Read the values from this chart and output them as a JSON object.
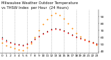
{
  "title_line1": "Milwaukee Weather Outdoor Temperature",
  "title_line2": "vs THSW Index  per Hour  (24 Hours)",
  "hours": [
    0,
    1,
    2,
    3,
    4,
    5,
    6,
    7,
    8,
    9,
    10,
    11,
    12,
    13,
    14,
    15,
    16,
    17,
    18,
    19,
    20,
    21,
    22,
    23
  ],
  "temp": [
    58,
    54,
    52,
    50,
    49,
    48,
    50,
    53,
    57,
    61,
    65,
    68,
    71,
    72,
    71,
    69,
    66,
    63,
    60,
    58,
    56,
    54,
    52,
    50
  ],
  "thsw": [
    52,
    48,
    46,
    44,
    43,
    42,
    45,
    51,
    60,
    70,
    79,
    86,
    92,
    95,
    92,
    87,
    80,
    73,
    66,
    61,
    57,
    54,
    52,
    49
  ],
  "black_temp": [
    60,
    56,
    53,
    51,
    50,
    49,
    51,
    54,
    58,
    62,
    66,
    69,
    72,
    73,
    72,
    70,
    67,
    64,
    61,
    59,
    57,
    55,
    53,
    51
  ],
  "temp_color": "#ff0000",
  "thsw_color": "#ff8800",
  "black_color": "#000000",
  "bg_color": "#ffffff",
  "grid_color": "#999999",
  "ylim": [
    38,
    100
  ],
  "xlim": [
    -0.5,
    23.5
  ],
  "vgrid_positions": [
    0,
    3,
    6,
    9,
    12,
    15,
    18,
    21
  ],
  "ytick_vals": [
    40,
    50,
    60,
    70,
    80,
    90
  ],
  "title_fontsize": 3.8,
  "tick_fontsize": 3.2,
  "dot_size_thsw": 2.0,
  "dot_size_temp": 1.5,
  "dot_size_black": 1.0
}
